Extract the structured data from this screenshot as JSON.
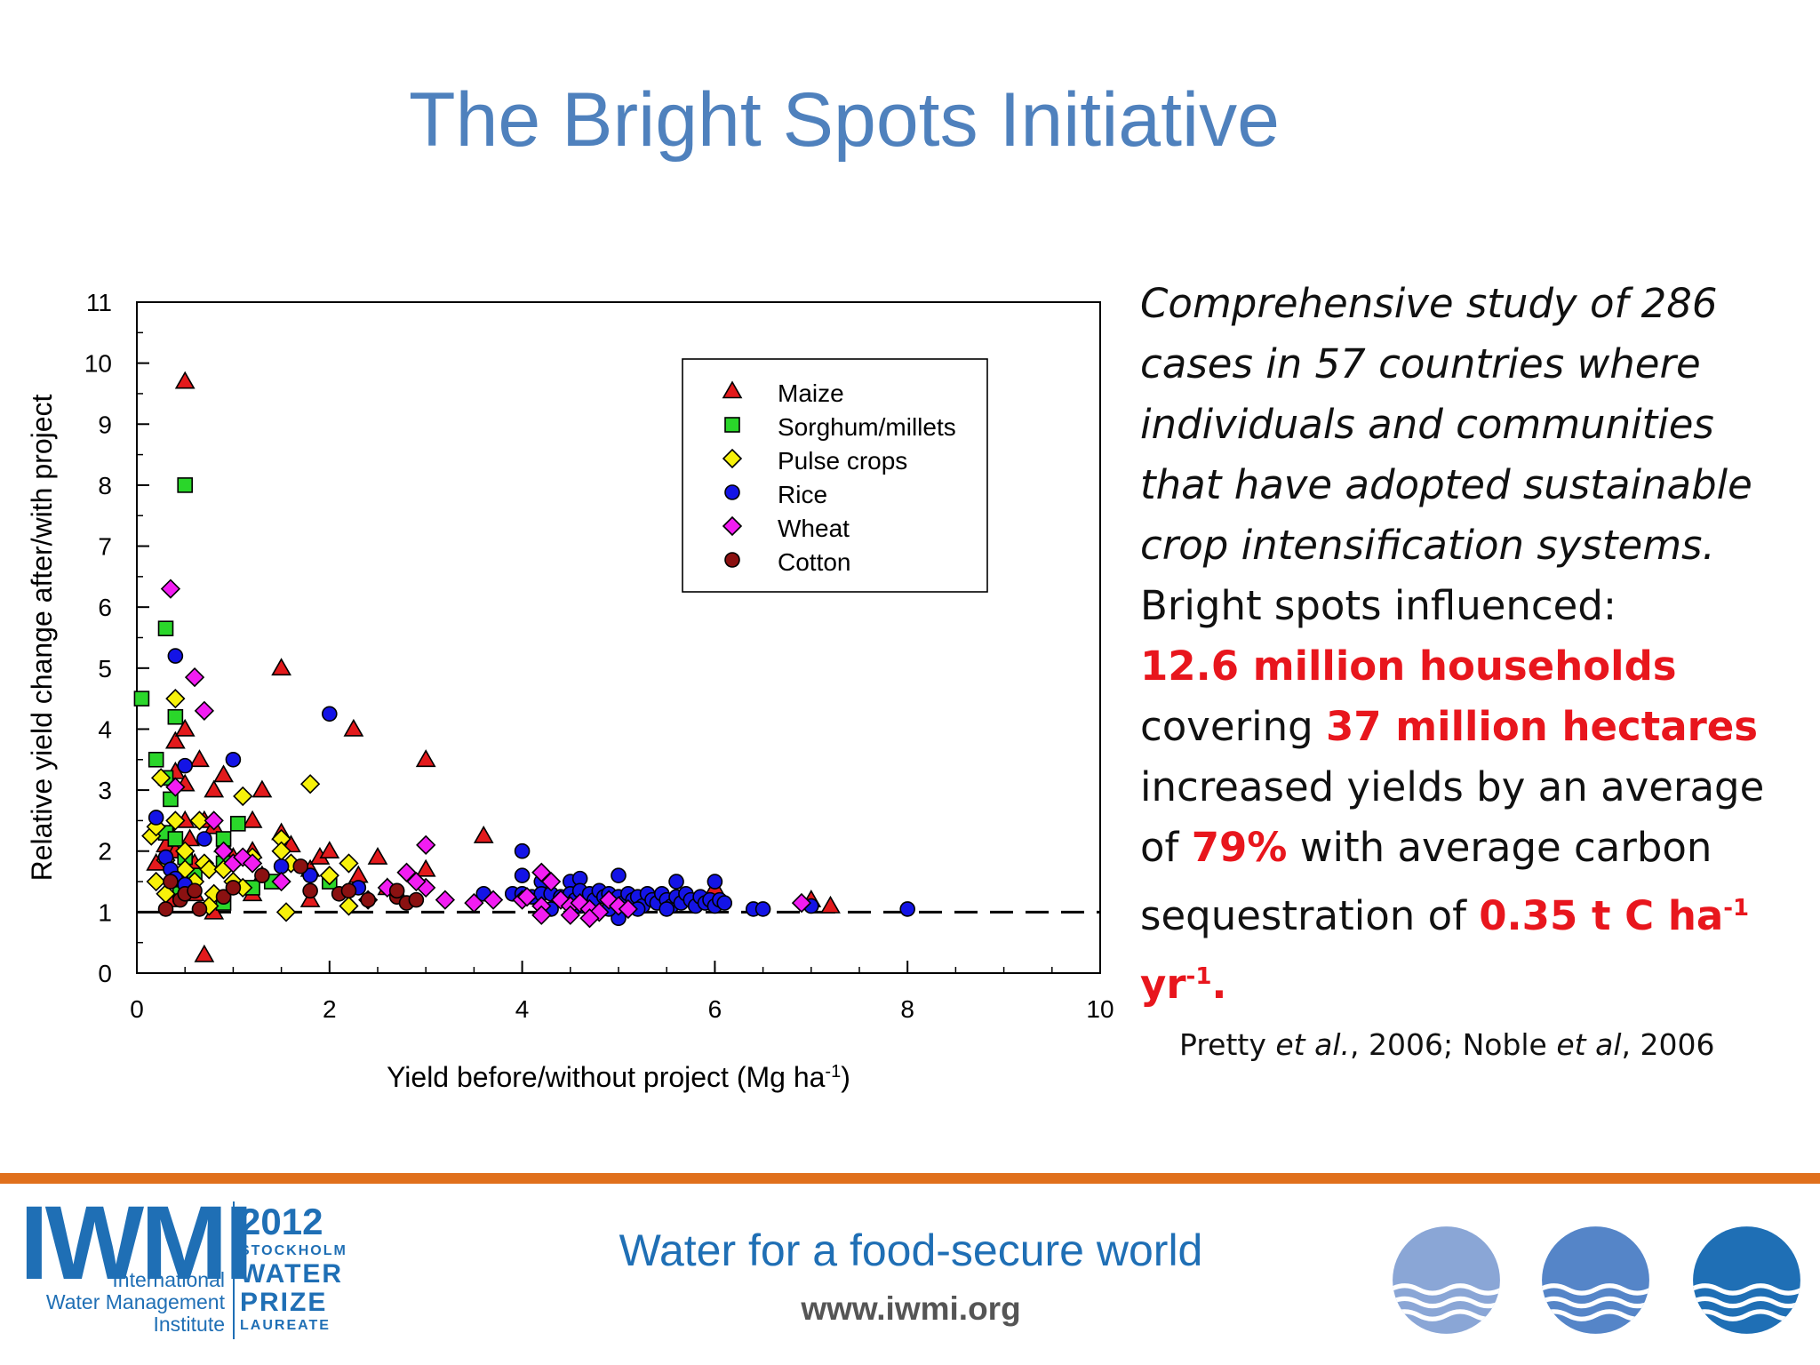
{
  "title": "The Bright Spots Initiative",
  "chart_data": {
    "type": "scatter",
    "xlabel": "Yield before/without project (Mg ha",
    "xlabel_sup": "-1",
    "xlabel_end": ")",
    "ylabel": "Relative yield change after/with project",
    "xlim": [
      0,
      10
    ],
    "ylim": [
      0,
      11
    ],
    "x_ticks": [
      "0",
      "2",
      "4",
      "6",
      "8",
      "10"
    ],
    "y_ticks": [
      "0",
      "1",
      "2",
      "3",
      "4",
      "5",
      "6",
      "7",
      "8",
      "9",
      "10",
      "11"
    ],
    "reference_line": {
      "y": 1,
      "style": "dashed"
    },
    "grid": false,
    "legend_position": "top-right",
    "series": [
      {
        "name": "Maize",
        "marker": "triangle",
        "color": "#e31a1c",
        "points": [
          [
            0.5,
            9.7
          ],
          [
            1.5,
            5.0
          ],
          [
            2.25,
            4.0
          ],
          [
            3.0,
            3.5
          ],
          [
            0.4,
            3.8
          ],
          [
            0.5,
            4.0
          ],
          [
            0.4,
            3.3
          ],
          [
            0.5,
            3.1
          ],
          [
            0.65,
            3.5
          ],
          [
            0.8,
            3.0
          ],
          [
            0.9,
            3.25
          ],
          [
            1.3,
            3.0
          ],
          [
            0.2,
            1.8
          ],
          [
            0.3,
            2.1
          ],
          [
            0.35,
            2.3
          ],
          [
            0.4,
            2.0
          ],
          [
            0.5,
            2.5
          ],
          [
            0.55,
            2.2
          ],
          [
            0.6,
            1.8
          ],
          [
            0.7,
            2.5
          ],
          [
            0.8,
            2.4
          ],
          [
            0.9,
            2.1
          ],
          [
            1.0,
            1.9
          ],
          [
            1.2,
            2.5
          ],
          [
            1.2,
            2.0
          ],
          [
            1.3,
            1.6
          ],
          [
            1.5,
            2.3
          ],
          [
            1.6,
            2.1
          ],
          [
            1.8,
            1.7
          ],
          [
            1.9,
            1.9
          ],
          [
            2.0,
            2.0
          ],
          [
            2.3,
            1.6
          ],
          [
            2.5,
            1.9
          ],
          [
            3.0,
            1.7
          ],
          [
            3.6,
            2.25
          ],
          [
            0.35,
            1.2
          ],
          [
            0.6,
            1.3
          ],
          [
            0.8,
            1.0
          ],
          [
            1.2,
            1.3
          ],
          [
            1.8,
            1.2
          ],
          [
            2.6,
            1.4
          ],
          [
            0.7,
            0.3
          ],
          [
            6.0,
            1.4
          ],
          [
            7.0,
            1.2
          ],
          [
            7.2,
            1.1
          ]
        ]
      },
      {
        "name": "Sorghum/millets",
        "marker": "square",
        "color": "#2ad62a",
        "points": [
          [
            0.5,
            8.0
          ],
          [
            0.3,
            5.65
          ],
          [
            0.05,
            4.5
          ],
          [
            0.4,
            4.2
          ],
          [
            0.2,
            3.5
          ],
          [
            0.3,
            3.2
          ],
          [
            0.35,
            2.85
          ],
          [
            0.3,
            2.3
          ],
          [
            0.4,
            2.2
          ],
          [
            0.5,
            1.9
          ],
          [
            0.6,
            1.6
          ],
          [
            0.9,
            2.2
          ],
          [
            0.9,
            1.8
          ],
          [
            1.05,
            2.45
          ],
          [
            1.2,
            1.4
          ],
          [
            1.4,
            1.5
          ],
          [
            2.0,
            1.5
          ],
          [
            0.45,
            1.3
          ],
          [
            0.9,
            1.15
          ]
        ]
      },
      {
        "name": "Pulse crops",
        "marker": "diamond",
        "color": "#f7f10a",
        "points": [
          [
            0.4,
            4.5
          ],
          [
            0.25,
            3.2
          ],
          [
            0.15,
            2.25
          ],
          [
            0.2,
            2.4
          ],
          [
            0.3,
            1.85
          ],
          [
            0.4,
            2.5
          ],
          [
            0.5,
            2.0
          ],
          [
            0.5,
            1.7
          ],
          [
            0.6,
            1.5
          ],
          [
            0.65,
            2.5
          ],
          [
            0.7,
            1.8
          ],
          [
            0.75,
            1.7
          ],
          [
            0.8,
            1.3
          ],
          [
            0.9,
            1.7
          ],
          [
            1.0,
            1.5
          ],
          [
            1.1,
            2.9
          ],
          [
            1.1,
            1.4
          ],
          [
            1.2,
            1.9
          ],
          [
            1.5,
            2.2
          ],
          [
            1.5,
            2.0
          ],
          [
            1.6,
            1.8
          ],
          [
            1.8,
            3.1
          ],
          [
            2.0,
            1.6
          ],
          [
            2.2,
            1.8
          ],
          [
            1.55,
            1.0
          ],
          [
            0.75,
            1.1
          ],
          [
            0.2,
            1.5
          ],
          [
            0.3,
            1.3
          ],
          [
            2.2,
            1.1
          ]
        ]
      },
      {
        "name": "Rice",
        "marker": "circle",
        "color": "#1414e6",
        "points": [
          [
            0.4,
            5.2
          ],
          [
            0.5,
            3.4
          ],
          [
            1.0,
            3.5
          ],
          [
            2.0,
            4.25
          ],
          [
            0.2,
            2.55
          ],
          [
            0.3,
            1.9
          ],
          [
            0.35,
            1.7
          ],
          [
            0.4,
            1.55
          ],
          [
            0.5,
            1.45
          ],
          [
            0.7,
            2.2
          ],
          [
            1.5,
            1.75
          ],
          [
            1.8,
            1.6
          ],
          [
            2.3,
            1.4
          ],
          [
            4.0,
            2.0
          ],
          [
            4.0,
            1.6
          ],
          [
            4.2,
            1.5
          ],
          [
            4.5,
            1.5
          ],
          [
            4.6,
            1.55
          ],
          [
            5.0,
            1.6
          ],
          [
            5.6,
            1.5
          ],
          [
            6.0,
            1.5
          ],
          [
            3.6,
            1.3
          ],
          [
            3.9,
            1.3
          ],
          [
            4.0,
            1.3
          ],
          [
            4.1,
            1.25
          ],
          [
            4.2,
            1.3
          ],
          [
            4.3,
            1.3
          ],
          [
            4.4,
            1.25
          ],
          [
            4.5,
            1.3
          ],
          [
            4.55,
            1.2
          ],
          [
            4.6,
            1.35
          ],
          [
            4.7,
            1.3
          ],
          [
            4.75,
            1.2
          ],
          [
            4.8,
            1.35
          ],
          [
            4.85,
            1.25
          ],
          [
            4.9,
            1.3
          ],
          [
            5.0,
            1.25
          ],
          [
            5.05,
            1.15
          ],
          [
            5.1,
            1.3
          ],
          [
            5.15,
            1.2
          ],
          [
            5.2,
            1.25
          ],
          [
            5.25,
            1.1
          ],
          [
            5.3,
            1.3
          ],
          [
            5.35,
            1.2
          ],
          [
            5.4,
            1.15
          ],
          [
            5.45,
            1.3
          ],
          [
            5.5,
            1.2
          ],
          [
            5.55,
            1.1
          ],
          [
            5.6,
            1.25
          ],
          [
            5.65,
            1.15
          ],
          [
            5.7,
            1.3
          ],
          [
            5.75,
            1.2
          ],
          [
            5.8,
            1.1
          ],
          [
            5.85,
            1.25
          ],
          [
            5.9,
            1.15
          ],
          [
            5.95,
            1.2
          ],
          [
            6.0,
            1.1
          ],
          [
            6.05,
            1.2
          ],
          [
            6.1,
            1.15
          ],
          [
            6.4,
            1.05
          ],
          [
            6.5,
            1.05
          ],
          [
            7.0,
            1.1
          ],
          [
            8.0,
            1.05
          ],
          [
            5.0,
            0.9
          ],
          [
            4.3,
            1.05
          ],
          [
            4.6,
            1.1
          ],
          [
            4.9,
            1.05
          ],
          [
            5.2,
            1.05
          ],
          [
            5.5,
            1.05
          ]
        ]
      },
      {
        "name": "Wheat",
        "marker": "diamond",
        "color": "#f21df2",
        "points": [
          [
            0.35,
            6.3
          ],
          [
            0.6,
            4.85
          ],
          [
            0.7,
            4.3
          ],
          [
            0.4,
            3.05
          ],
          [
            0.8,
            2.5
          ],
          [
            0.9,
            2.0
          ],
          [
            1.0,
            1.8
          ],
          [
            1.1,
            1.9
          ],
          [
            1.2,
            1.8
          ],
          [
            1.5,
            1.5
          ],
          [
            2.8,
            1.65
          ],
          [
            3.0,
            2.1
          ],
          [
            3.0,
            1.4
          ],
          [
            2.9,
            1.5
          ],
          [
            3.2,
            1.2
          ],
          [
            3.5,
            1.15
          ],
          [
            4.2,
            1.65
          ],
          [
            4.3,
            1.5
          ],
          [
            4.0,
            1.2
          ],
          [
            4.2,
            1.1
          ],
          [
            4.4,
            1.2
          ],
          [
            4.5,
            1.1
          ],
          [
            4.6,
            1.15
          ],
          [
            4.7,
            1.05
          ],
          [
            4.8,
            1.0
          ],
          [
            4.9,
            1.2
          ],
          [
            5.0,
            1.1
          ],
          [
            5.1,
            1.05
          ],
          [
            4.5,
            0.95
          ],
          [
            4.7,
            0.9
          ],
          [
            4.2,
            0.95
          ],
          [
            6.9,
            1.15
          ],
          [
            2.6,
            1.4
          ],
          [
            2.4,
            1.2
          ],
          [
            3.7,
            1.2
          ],
          [
            4.05,
            1.25
          ]
        ]
      },
      {
        "name": "Cotton",
        "marker": "circle",
        "color": "#8b1111",
        "points": [
          [
            0.3,
            1.05
          ],
          [
            0.65,
            1.05
          ],
          [
            0.35,
            1.5
          ],
          [
            0.45,
            1.2
          ],
          [
            0.5,
            1.3
          ],
          [
            0.6,
            1.35
          ],
          [
            0.9,
            1.25
          ],
          [
            1.0,
            1.4
          ],
          [
            1.3,
            1.6
          ],
          [
            1.7,
            1.75
          ],
          [
            1.8,
            1.35
          ],
          [
            2.1,
            1.3
          ],
          [
            2.2,
            1.35
          ],
          [
            2.4,
            1.2
          ],
          [
            2.7,
            1.25
          ],
          [
            2.8,
            1.15
          ],
          [
            2.9,
            1.2
          ],
          [
            2.7,
            1.35
          ]
        ]
      }
    ]
  },
  "summary": {
    "italic_lines": [
      "Comprehensive study of 286",
      "cases in 57 countries where",
      "individuals and communities",
      "that have adopted sustainable",
      "crop intensification systems."
    ],
    "line_influenced": "Bright spots influenced:",
    "households": "12.6 million households",
    "covering_prefix": "covering ",
    "hectares": "37 million hectares",
    "increased_line": "increased yields by an average",
    "of_prefix": "of ",
    "percent": "79%",
    "carbon_text": " with average carbon",
    "sequestration_prefix": "sequestration of ",
    "carbon_value": "0.35 t C ha",
    "carbon_sup": "-1",
    "yr_text": "yr",
    "yr_sup": "-1",
    "yr_end": "."
  },
  "citation": {
    "a1": "Pretty ",
    "a1_it": "et al.",
    "a2": ", 2006; Noble ",
    "a2_it": "et al",
    "a3": ", 2006"
  },
  "footer": {
    "tagline": "Water for a food-secure world",
    "url": "www.iwmi.org",
    "logo_text": "IWMI",
    "logo_sub1": "International",
    "logo_sub2": "Water Management",
    "logo_sub3": "Institute",
    "prize_year": "2012",
    "prize_city": "STOCKHOLM",
    "prize_water": "WATER",
    "prize_prize": "PRIZE",
    "prize_laureate": "LAUREATE"
  }
}
